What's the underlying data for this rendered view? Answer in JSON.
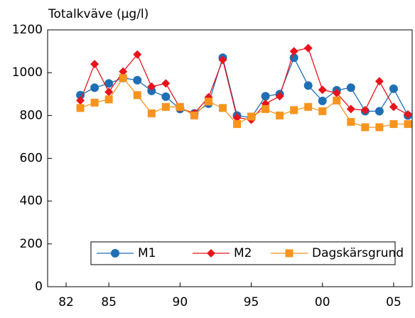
{
  "chart_data": {
    "type": "line",
    "title": "Totalkväve (µg/l)",
    "x": [
      1983,
      1984,
      1985,
      1986,
      1987,
      1988,
      1989,
      1990,
      1991,
      1992,
      1993,
      1994,
      1995,
      1996,
      1997,
      1998,
      1999,
      2000,
      2001,
      2002,
      2003,
      2004,
      2005,
      2006
    ],
    "series": [
      {
        "name": "M1",
        "color": "#1f6fb4",
        "marker": "circle",
        "values": [
          895,
          930,
          950,
          975,
          965,
          915,
          888,
          830,
          810,
          855,
          1070,
          800,
          790,
          890,
          900,
          1070,
          940,
          868,
          918,
          930,
          820,
          820,
          925,
          800
        ]
      },
      {
        "name": "M2",
        "color": "#e8141c",
        "marker": "diamond",
        "values": [
          870,
          1040,
          910,
          1005,
          1085,
          935,
          950,
          835,
          810,
          885,
          1060,
          790,
          780,
          855,
          890,
          1100,
          1115,
          920,
          905,
          830,
          825,
          960,
          840,
          805
        ]
      },
      {
        "name": "Dagskärsgrund",
        "color": "#f7941d",
        "marker": "square",
        "values": [
          835,
          860,
          875,
          975,
          895,
          810,
          840,
          840,
          800,
          865,
          835,
          760,
          795,
          830,
          800,
          825,
          840,
          820,
          870,
          770,
          745,
          745,
          760,
          760
        ]
      }
    ],
    "xlim": [
      1980.7,
      2006.3
    ],
    "xticks": [
      {
        "value": 1982,
        "label": "82"
      },
      {
        "value": 1985,
        "label": "85"
      },
      {
        "value": 1990,
        "label": "90"
      },
      {
        "value": 1995,
        "label": "95"
      },
      {
        "value": 2000,
        "label": "00"
      },
      {
        "value": 2005,
        "label": "05"
      }
    ],
    "ylim": [
      0,
      1200
    ],
    "yticks": [
      0,
      200,
      400,
      600,
      800,
      1000,
      1200
    ],
    "grid": false,
    "legend": "bottom"
  }
}
